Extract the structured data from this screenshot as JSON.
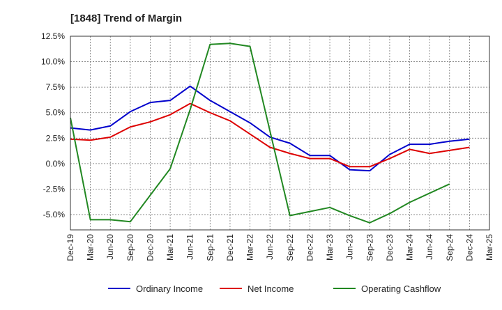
{
  "chart_data": {
    "type": "line",
    "title": "[1848]  Trend of Margin",
    "x": [
      "Dec-19",
      "Mar-20",
      "Jun-20",
      "Sep-20",
      "Dec-20",
      "Mar-21",
      "Jun-21",
      "Sep-21",
      "Dec-21",
      "Mar-22",
      "Jun-22",
      "Sep-22",
      "Dec-22",
      "Mar-23",
      "Jun-23",
      "Sep-23",
      "Dec-23",
      "Mar-24",
      "Jun-24",
      "Sep-24",
      "Dec-24",
      "Mar-25"
    ],
    "ylim": [
      -6.5,
      12.5
    ],
    "yticks": [
      12.5,
      10.0,
      7.5,
      5.0,
      2.5,
      0.0,
      -2.5,
      -5.0
    ],
    "ytick_labels": [
      "12.5%",
      "10.0%",
      "7.5%",
      "5.0%",
      "2.5%",
      "0.0%",
      "-2.5%",
      "-5.0%"
    ],
    "grid": true,
    "legend_position": "bottom",
    "series": [
      {
        "name": "Ordinary Income",
        "color": "#0000cc",
        "values": [
          3.5,
          3.3,
          3.7,
          5.1,
          6.0,
          6.2,
          7.6,
          6.2,
          5.1,
          4.0,
          2.6,
          2.0,
          0.8,
          0.8,
          -0.6,
          -0.7,
          0.9,
          1.9,
          1.9,
          2.2,
          2.4,
          null
        ]
      },
      {
        "name": "Net Income",
        "color": "#dd0000",
        "values": [
          2.4,
          2.3,
          2.6,
          3.6,
          4.1,
          4.8,
          5.9,
          5.0,
          4.2,
          2.9,
          1.6,
          1.0,
          0.5,
          0.5,
          -0.3,
          -0.3,
          0.5,
          1.4,
          1.0,
          1.3,
          1.6,
          null
        ]
      },
      {
        "name": "Operating Cashflow",
        "color": "#228822",
        "values": [
          4.5,
          -5.5,
          -5.5,
          -5.7,
          -3.1,
          -0.5,
          5.3,
          11.7,
          11.8,
          11.5,
          3.2,
          -5.1,
          -4.7,
          -4.3,
          -5.1,
          -5.8,
          -4.9,
          -3.8,
          -2.9,
          -2.0,
          null,
          null
        ]
      }
    ]
  }
}
